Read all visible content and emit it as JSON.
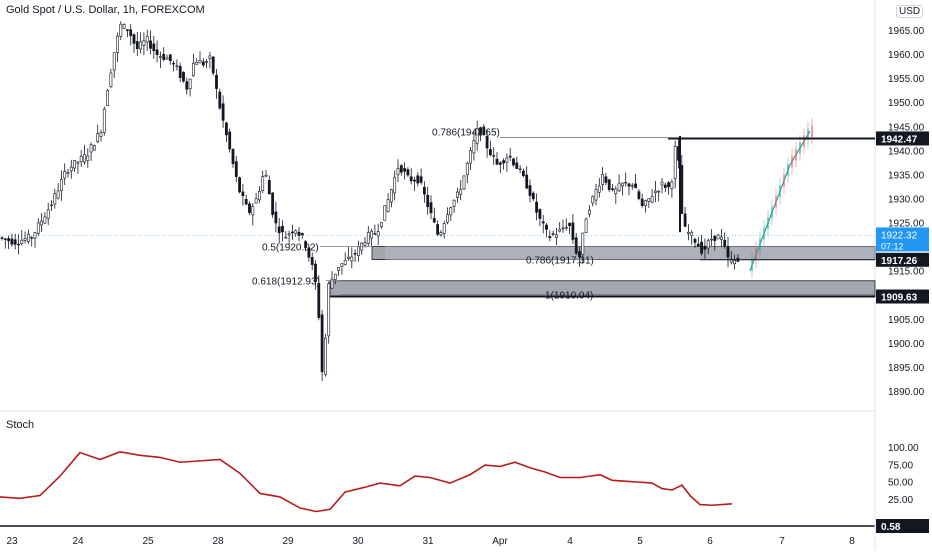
{
  "header": {
    "title": "Gold Spot / U.S. Dollar, 1h, FOREXCOM",
    "currency_badge": "USD"
  },
  "chart_data": [
    {
      "type": "candlestick",
      "title": "Gold Spot / U.S. Dollar, 1h, FOREXCOM",
      "ylim": [
        1886,
        1970
      ],
      "y_ticks": [
        "1965.00",
        "1960.00",
        "1955.00",
        "1950.00",
        "1945.00",
        "1940.00",
        "1935.00",
        "1930.00",
        "1925.00",
        "1920.00",
        "1915.00",
        "1910.00",
        "1905.00",
        "1900.00",
        "1895.00",
        "1890.00"
      ],
      "x_ticks": [
        "23",
        "24",
        "25",
        "28",
        "29",
        "30",
        "31",
        "Apr",
        "4",
        "5",
        "6",
        "7",
        "8"
      ],
      "price_path": [
        [
          0,
          1922
        ],
        [
          18,
          1921
        ],
        [
          35,
          1922
        ],
        [
          55,
          1929
        ],
        [
          70,
          1936
        ],
        [
          90,
          1939
        ],
        [
          104,
          1944
        ],
        [
          110,
          1952
        ],
        [
          118,
          1961
        ],
        [
          124,
          1966
        ],
        [
          132,
          1965
        ],
        [
          140,
          1961
        ],
        [
          150,
          1963
        ],
        [
          160,
          1960
        ],
        [
          172,
          1959
        ],
        [
          180,
          1957
        ],
        [
          190,
          1953
        ],
        [
          198,
          1959
        ],
        [
          206,
          1958
        ],
        [
          214,
          1959
        ],
        [
          222,
          1950
        ],
        [
          232,
          1941
        ],
        [
          242,
          1932
        ],
        [
          252,
          1927
        ],
        [
          260,
          1930
        ],
        [
          268,
          1936
        ],
        [
          278,
          1925
        ],
        [
          288,
          1922
        ],
        [
          298,
          1924
        ],
        [
          308,
          1921
        ],
        [
          318,
          1914
        ],
        [
          322,
          1906
        ],
        [
          326,
          1892
        ],
        [
          332,
          1912
        ],
        [
          342,
          1916
        ],
        [
          350,
          1917
        ],
        [
          360,
          1919
        ],
        [
          370,
          1922
        ],
        [
          380,
          1923
        ],
        [
          392,
          1930
        ],
        [
          402,
          1937
        ],
        [
          412,
          1934
        ],
        [
          422,
          1934
        ],
        [
          432,
          1928
        ],
        [
          442,
          1922
        ],
        [
          452,
          1928
        ],
        [
          462,
          1931
        ],
        [
          472,
          1938
        ],
        [
          482,
          1945
        ],
        [
          490,
          1941
        ],
        [
          500,
          1937
        ],
        [
          512,
          1939
        ],
        [
          522,
          1936
        ],
        [
          532,
          1932
        ],
        [
          542,
          1926
        ],
        [
          552,
          1922
        ],
        [
          562,
          1923
        ],
        [
          572,
          1925
        ],
        [
          582,
          1917
        ],
        [
          590,
          1927
        ],
        [
          598,
          1931
        ],
        [
          606,
          1935
        ],
        [
          616,
          1931
        ],
        [
          626,
          1933
        ],
        [
          636,
          1933
        ],
        [
          646,
          1928
        ],
        [
          656,
          1931
        ],
        [
          666,
          1933
        ],
        [
          674,
          1932
        ],
        [
          680,
          1943
        ],
        [
          686,
          1924
        ],
        [
          696,
          1922
        ],
        [
          706,
          1919
        ],
        [
          716,
          1922
        ],
        [
          724,
          1922
        ],
        [
          732,
          1917
        ],
        [
          740,
          1917
        ]
      ],
      "projection_path": [
        [
          750,
          1915
        ],
        [
          770,
          1926
        ],
        [
          790,
          1937
        ],
        [
          810,
          1944
        ]
      ],
      "fib_levels": [
        {
          "label": "0.786(1942.65)",
          "price": 1942.65
        },
        {
          "label": "0.5(1920.02)",
          "price": 1920.02
        },
        {
          "label": "0.786(1917.31)",
          "price": 1917.31
        },
        {
          "label": "0.618(1912.93)",
          "price": 1912.93
        },
        {
          "label": "1(1910.04)",
          "price": 1910.04
        }
      ],
      "zones": [
        {
          "label": "0.786(1917.31)",
          "top": 1920.0,
          "bottom": 1917.31
        },
        {
          "label": "1(1910.04)",
          "top": 1912.9,
          "bottom": 1909.63
        }
      ],
      "price_lines": [
        {
          "label": "1942.47",
          "price": 1942.47
        },
        {
          "label": "1917.26",
          "price": 1917.26
        },
        {
          "label": "1909.63",
          "price": 1909.63
        }
      ],
      "current_price": {
        "value": "1922.32",
        "countdown": "07:12",
        "color": "#2196f3"
      },
      "colors": {
        "up": "#26a69a",
        "down": "#131722",
        "projection_up": "#26a69a",
        "projection_down": "#ef5350"
      }
    },
    {
      "type": "line",
      "title": "Stoch",
      "ylim": [
        0,
        105
      ],
      "y_ticks": [
        "100.00",
        "75.00",
        "50.00",
        "25.00"
      ],
      "current_value": "0.58",
      "series": [
        {
          "color": "#b71c1c",
          "values": [
            [
              0,
              28
            ],
            [
              20,
              26
            ],
            [
              40,
              30
            ],
            [
              60,
              58
            ],
            [
              80,
              92
            ],
            [
              100,
              82
            ],
            [
              120,
              93
            ],
            [
              140,
              88
            ],
            [
              160,
              85
            ],
            [
              180,
              78
            ],
            [
              200,
              80
            ],
            [
              220,
              82
            ],
            [
              240,
              62
            ],
            [
              260,
              33
            ],
            [
              280,
              28
            ],
            [
              300,
              12
            ],
            [
              316,
              7
            ],
            [
              330,
              10
            ],
            [
              345,
              35
            ],
            [
              365,
              42
            ],
            [
              380,
              48
            ],
            [
              400,
              44
            ],
            [
              415,
              58
            ],
            [
              430,
              56
            ],
            [
              450,
              48
            ],
            [
              470,
              60
            ],
            [
              485,
              74
            ],
            [
              500,
              72
            ],
            [
              515,
              78
            ],
            [
              530,
              70
            ],
            [
              545,
              64
            ],
            [
              560,
              56
            ],
            [
              580,
              56
            ],
            [
              590,
              58
            ],
            [
              600,
              60
            ],
            [
              612,
              52
            ],
            [
              632,
              50
            ],
            [
              652,
              48
            ],
            [
              662,
              40
            ],
            [
              672,
              38
            ],
            [
              682,
              45
            ],
            [
              690,
              30
            ],
            [
              700,
              17
            ],
            [
              712,
              16
            ],
            [
              732,
              18
            ]
          ]
        }
      ]
    }
  ]
}
